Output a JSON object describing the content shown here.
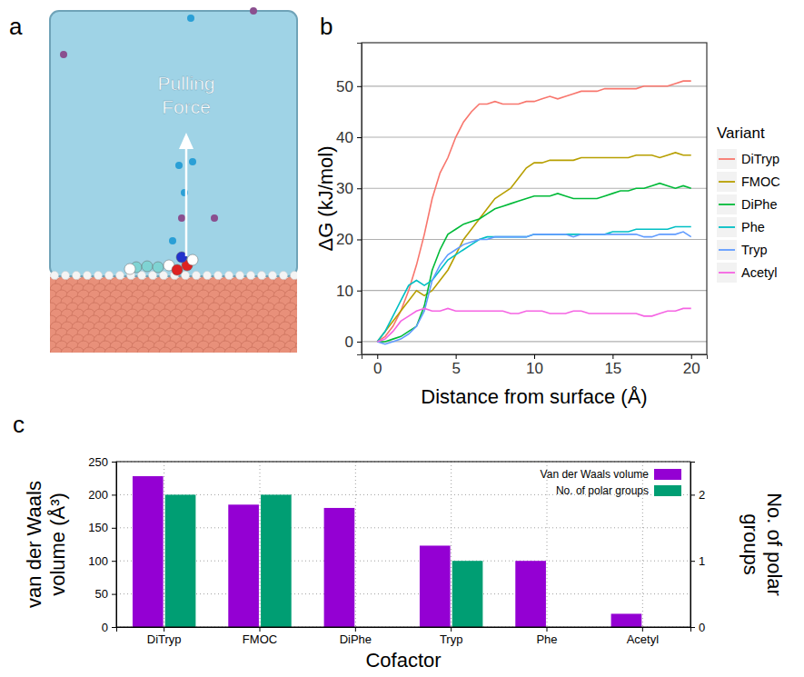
{
  "figure_a": {
    "label": "a",
    "annotation": "Pulling Force"
  },
  "chart_data": [
    {
      "type": "line",
      "panel_label": "b",
      "x_label": "Distance from surface (Å)",
      "y_label": "ΔG (kJ/mol)",
      "x": [
        0,
        0.5,
        1,
        1.5,
        2,
        2.5,
        3,
        3.5,
        4,
        4.5,
        5,
        5.5,
        6,
        6.5,
        7,
        7.5,
        8,
        8.5,
        9,
        9.5,
        10,
        10.5,
        11,
        11.5,
        12,
        12.5,
        13,
        13.5,
        14,
        14.5,
        15,
        15.5,
        16,
        16.5,
        17,
        17.5,
        18,
        18.5,
        19,
        19.5,
        20
      ],
      "series": [
        {
          "name": "DiTryp",
          "color": "#f8766d",
          "values": [
            0,
            1,
            3,
            6,
            10,
            15,
            21,
            28,
            33,
            36,
            40,
            43,
            45,
            46.5,
            46.5,
            47,
            46.5,
            46.5,
            46.5,
            47,
            47,
            47.5,
            48,
            47.5,
            48,
            48.5,
            49,
            49,
            49,
            49.5,
            49.5,
            49.5,
            49.5,
            49.5,
            50,
            50,
            50,
            50,
            50.5,
            51,
            51
          ]
        },
        {
          "name": "FMOC",
          "color": "#b79f00",
          "values": [
            0,
            2,
            4,
            6,
            8,
            10,
            9,
            10,
            12,
            14,
            17,
            20,
            22,
            24,
            26,
            28,
            29,
            30,
            32,
            34,
            35,
            35,
            35.5,
            35.5,
            35.5,
            35.5,
            36,
            36,
            36,
            36,
            36,
            36,
            36,
            36.5,
            36.5,
            36.5,
            36,
            36.5,
            37,
            36.5,
            36.5
          ]
        },
        {
          "name": "DiPhe",
          "color": "#00ba38",
          "values": [
            0,
            0,
            0.5,
            1,
            2,
            3,
            7,
            14,
            18,
            21,
            22,
            23,
            23.5,
            24,
            25,
            26,
            26.5,
            27,
            27.5,
            28,
            28.5,
            28.5,
            28.5,
            29,
            28.5,
            28,
            28,
            28,
            28,
            28.5,
            29,
            29.5,
            29.5,
            30,
            30,
            30.5,
            31,
            30.5,
            30,
            30.5,
            30
          ]
        },
        {
          "name": "Phe",
          "color": "#00bfc4",
          "values": [
            0,
            2,
            5,
            8,
            11,
            12,
            11,
            12,
            14,
            16,
            17,
            18,
            19,
            20,
            20.5,
            20.5,
            20.5,
            20.5,
            20.5,
            20.5,
            21,
            21,
            21,
            21,
            21,
            21,
            21,
            21,
            21,
            21,
            21.5,
            21.5,
            21.5,
            22,
            22,
            22,
            22,
            22,
            22.5,
            22.5,
            22.5
          ]
        },
        {
          "name": "Tryp",
          "color": "#619cff",
          "values": [
            0,
            -0.5,
            0,
            0.5,
            1.5,
            3,
            6,
            12,
            15,
            17,
            18,
            19,
            19.5,
            20,
            20,
            20.5,
            20.5,
            20.5,
            20.5,
            20.5,
            21,
            21,
            21,
            21,
            21,
            20.5,
            21,
            21,
            21,
            21,
            21,
            21,
            21,
            21,
            20.5,
            20.5,
            21,
            21,
            21,
            21.5,
            20.5
          ]
        },
        {
          "name": "Acetyl",
          "color": "#f564e3",
          "values": [
            0,
            0.5,
            2,
            4,
            5,
            6,
            6.5,
            6,
            6,
            6.5,
            6,
            6,
            6,
            6,
            6,
            6,
            6,
            5.5,
            5.5,
            6,
            6,
            6,
            5.5,
            5.5,
            5.5,
            6,
            6,
            5.5,
            5.5,
            5.5,
            5.5,
            5.5,
            5.5,
            5.5,
            5,
            5,
            5.5,
            6,
            6,
            6.5,
            6.5
          ]
        }
      ],
      "xlim": [
        -1,
        21
      ],
      "xticks": [
        0,
        5,
        10,
        15,
        20
      ],
      "ylim": [
        -2.5,
        58.5
      ],
      "yticks": [
        0,
        10,
        20,
        30,
        40,
        50
      ],
      "grid": "y",
      "legend": "right",
      "legend_title": "Variant"
    },
    {
      "type": "bar",
      "panel_label": "c",
      "x_label": "Cofactor",
      "y_label": "van der Waals volume (Å³)",
      "y2_label": "No. of polar groups",
      "categories": [
        "DiTryp",
        "FMOC",
        "DiPhe",
        "Tryp",
        "Phe",
        "Acetyl"
      ],
      "series": [
        {
          "name": "Van der Waals volume",
          "color": "#9400d3",
          "values": [
            228,
            185,
            180,
            123,
            100,
            20
          ]
        },
        {
          "name": "No. of polar groups",
          "color": "#009e73",
          "values": [
            2,
            2,
            0,
            1,
            0,
            0
          ],
          "axis": "y2"
        }
      ],
      "ylim": [
        0,
        250
      ],
      "yticks": [
        0,
        50,
        100,
        150,
        200,
        250
      ],
      "y2lim": [
        0,
        2.5
      ],
      "y2ticks": [
        0,
        1,
        2
      ],
      "grid": true,
      "legend": "top-right"
    }
  ]
}
